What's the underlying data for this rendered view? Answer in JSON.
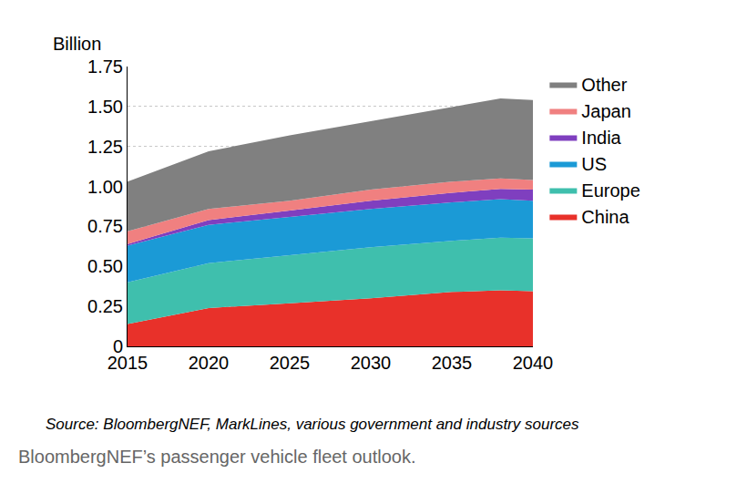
{
  "chart_data": {
    "type": "area",
    "stacked": true,
    "ylabel": "Billion",
    "source": "Source: BloombergNEF, MarkLines, various government and industry sources",
    "caption": "BloombergNEF’s passenger vehicle fleet outlook.",
    "x": [
      2015,
      2020,
      2025,
      2030,
      2035,
      2038,
      2040
    ],
    "series": [
      {
        "name": "China",
        "color": "#e8312a",
        "values": [
          0.14,
          0.24,
          0.27,
          0.3,
          0.34,
          0.35,
          0.345
        ]
      },
      {
        "name": "Europe",
        "color": "#3fbfad",
        "values": [
          0.26,
          0.28,
          0.3,
          0.32,
          0.32,
          0.33,
          0.33
        ]
      },
      {
        "name": "US",
        "color": "#1b9ad6",
        "values": [
          0.23,
          0.24,
          0.24,
          0.24,
          0.24,
          0.24,
          0.235
        ]
      },
      {
        "name": "India",
        "color": "#7f3fbf",
        "values": [
          0.01,
          0.03,
          0.04,
          0.05,
          0.06,
          0.065,
          0.07
        ]
      },
      {
        "name": "Japan",
        "color": "#f08080",
        "values": [
          0.08,
          0.07,
          0.06,
          0.07,
          0.07,
          0.065,
          0.06
        ]
      },
      {
        "name": "Other",
        "color": "#808080",
        "values": [
          0.31,
          0.36,
          0.41,
          0.43,
          0.47,
          0.5,
          0.5
        ]
      }
    ],
    "xlim": [
      2015,
      2040
    ],
    "xticks": [
      2015,
      2020,
      2025,
      2030,
      2035,
      2040
    ],
    "ylim": [
      0,
      1.75
    ],
    "yticks": [
      0,
      0.25,
      {
        "value": 0.5,
        "label": "0.50"
      },
      0.75,
      {
        "value": 1,
        "label": "1.00"
      },
      1.25,
      {
        "value": 1.5,
        "label": "1.50"
      },
      1.75
    ],
    "grid": true,
    "legend": "right"
  }
}
